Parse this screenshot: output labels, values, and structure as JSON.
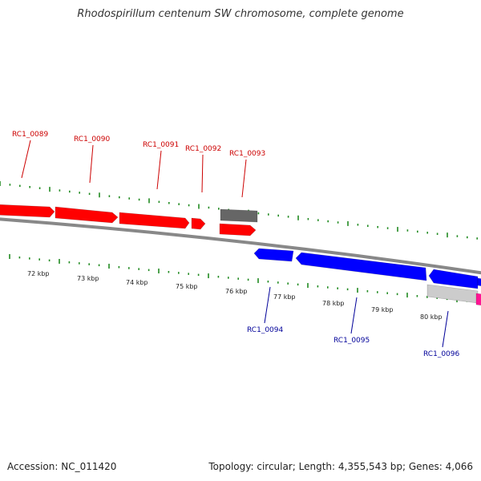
{
  "title": "Rhodospirillum centenum SW chromosome, complete genome",
  "footer": {
    "accession": "Accession: NC_011420",
    "summary": "Topology: circular; Length: 4,355,543 bp; Genes: 4,066"
  },
  "colors": {
    "forward_gene": "#ff0000",
    "reverse_gene": "#0000ff",
    "other_feature": "#666666",
    "light_feature": "#cccccc",
    "pink_feature": "#ff1493",
    "backbone": "#888888",
    "ticks": "#228b22",
    "forward_label": "#cc0000",
    "reverse_label": "#000099"
  },
  "kbp_labels": [
    "72 kbp",
    "73 kbp",
    "74 kbp",
    "75 kbp",
    "76 kbp",
    "77 kbp",
    "78 kbp",
    "79 kbp",
    "80 kbp"
  ],
  "forward_genes": [
    "RC1_0089",
    "RC1_0090",
    "RC1_0091",
    "RC1_0092",
    "RC1_0093"
  ],
  "reverse_genes": [
    "RC1_0094",
    "RC1_0095",
    "RC1_0096"
  ]
}
